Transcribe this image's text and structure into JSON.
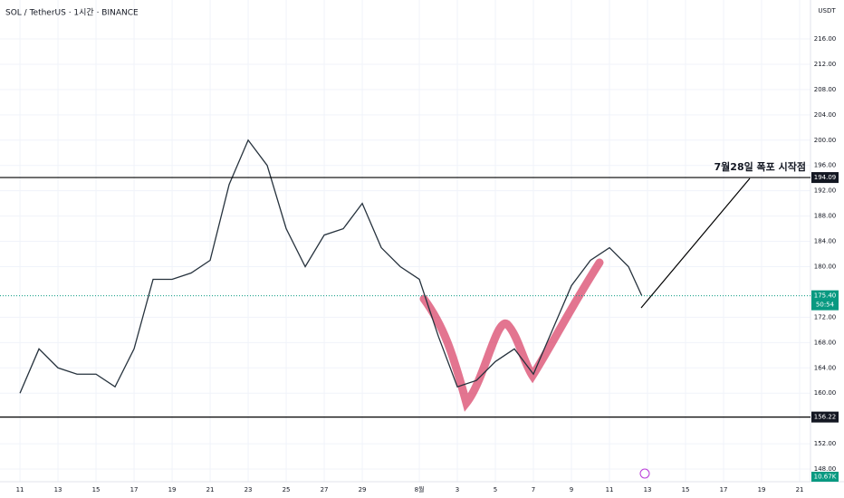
{
  "chart_data": {
    "type": "line",
    "title": "SOL / TetherUS · 1시간 · BINANCE",
    "currency": "USDT",
    "x": [
      0,
      1,
      2,
      3,
      4,
      5,
      6,
      7,
      8,
      9,
      10,
      11,
      12,
      13,
      14,
      15,
      16,
      17,
      18,
      19,
      20,
      21,
      22,
      23,
      24,
      25,
      26,
      27,
      28,
      29,
      30,
      31,
      32,
      32.7
    ],
    "series": [
      {
        "color": "#26323d",
        "values": [
          160,
          167,
          164,
          163,
          163,
          161,
          167,
          178,
          178,
          179,
          181,
          193,
          200,
          196,
          186,
          180,
          185,
          186,
          190,
          183,
          180,
          178,
          169,
          161,
          162,
          165,
          167,
          163,
          170,
          177,
          181,
          183,
          180,
          175.4
        ]
      }
    ],
    "xlim": [
      -1.05,
      41.57
    ],
    "xticks": [
      {
        "value": 0,
        "label": "11"
      },
      {
        "value": 2,
        "label": "13"
      },
      {
        "value": 4,
        "label": "15"
      },
      {
        "value": 6,
        "label": "17"
      },
      {
        "value": 8,
        "label": "19"
      },
      {
        "value": 10,
        "label": "21"
      },
      {
        "value": 12,
        "label": "23"
      },
      {
        "value": 14,
        "label": "25"
      },
      {
        "value": 16,
        "label": "27"
      },
      {
        "value": 18,
        "label": "29"
      },
      {
        "value": 21,
        "label": "8월"
      },
      {
        "value": 23,
        "label": "3"
      },
      {
        "value": 25,
        "label": "5"
      },
      {
        "value": 27,
        "label": "7"
      },
      {
        "value": 29,
        "label": "9"
      },
      {
        "value": 31,
        "label": "11"
      },
      {
        "value": 33,
        "label": "13"
      },
      {
        "value": 35,
        "label": "15"
      },
      {
        "value": 37,
        "label": "17"
      },
      {
        "value": 39,
        "label": "19"
      },
      {
        "value": 41,
        "label": "21"
      }
    ],
    "ylim": [
      146,
      222.16
    ],
    "yticks": [
      {
        "value": 148,
        "label": "148.00"
      },
      {
        "value": 152,
        "label": "152.00"
      },
      {
        "value": 160,
        "label": "160.00"
      },
      {
        "value": 164,
        "label": "164.00"
      },
      {
        "value": 168,
        "label": "168.00"
      },
      {
        "value": 172,
        "label": "172.00"
      },
      {
        "value": 180,
        "label": "180.00"
      },
      {
        "value": 184,
        "label": "184.00"
      },
      {
        "value": 188,
        "label": "188.00"
      },
      {
        "value": 192,
        "label": "192.00"
      },
      {
        "value": 196,
        "label": "196.00"
      },
      {
        "value": 200,
        "label": "200.00"
      },
      {
        "value": 204,
        "label": "204.00"
      },
      {
        "value": 208,
        "label": "208.00"
      },
      {
        "value": 212,
        "label": "212.00"
      },
      {
        "value": 216,
        "label": "216.00"
      }
    ],
    "levels": [
      194.09,
      156.22
    ],
    "last_price": {
      "value": 175.4,
      "label": "175.40"
    },
    "countdown": "50:54",
    "volume_label": "10.67K",
    "annotation": "7월28일 폭포 시작점",
    "grid": true
  }
}
